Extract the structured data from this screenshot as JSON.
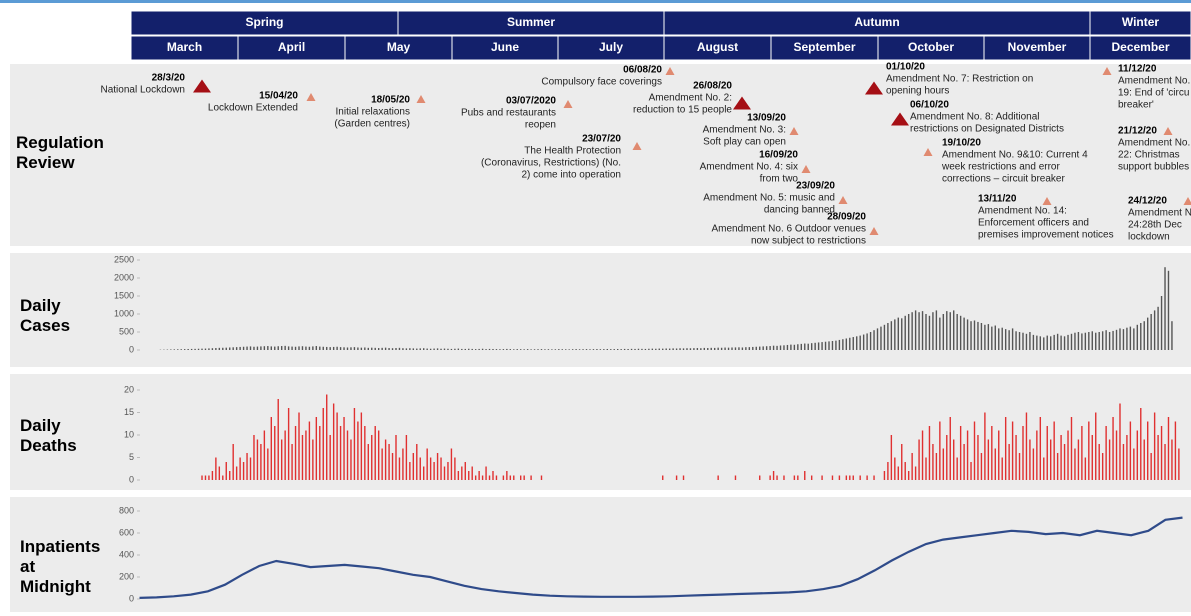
{
  "header": {
    "seasons": [
      "Spring",
      "Summer",
      "Autumn",
      "Winter"
    ],
    "months": [
      "March",
      "April",
      "May",
      "June",
      "July",
      "August",
      "September",
      "October",
      "November",
      "December"
    ]
  },
  "regulation": {
    "title": "Regulation Review",
    "events": [
      {
        "date": "28/3/20",
        "lines": [
          "National Lockdown"
        ],
        "marker": "large",
        "color": "#a50f15"
      },
      {
        "date": "15/04/20",
        "lines": [
          "Lockdown Extended"
        ],
        "marker": "small",
        "color": "#e08a70"
      },
      {
        "date": "18/05/20",
        "lines": [
          "Initial relaxations",
          "(Garden centres)"
        ],
        "marker": "small",
        "color": "#e08a70"
      },
      {
        "date": "06/08/20",
        "lines": [
          "Compulsory face coverings"
        ],
        "marker": "small",
        "color": "#e08a70"
      },
      {
        "date": "03/07/2020",
        "lines": [
          "Pubs and restaurants",
          "reopen"
        ],
        "marker": "small",
        "color": "#e08a70"
      },
      {
        "date": "23/07/20",
        "lines": [
          "The Health Protection",
          "(Coronavirus, Restrictions) (No.",
          "2) come into operation"
        ],
        "marker": "small",
        "color": "#e08a70"
      },
      {
        "date": "26/08/20",
        "lines": [
          "Amendment No. 2:",
          "reduction to 15 people"
        ],
        "marker": "large",
        "color": "#a50f15"
      },
      {
        "date": "13/09/20",
        "lines": [
          "Amendment No. 3:",
          "Soft play can open"
        ],
        "marker": "small",
        "color": "#e08a70"
      },
      {
        "date": "16/09/20",
        "lines": [
          "Amendment No. 4: six",
          "from two"
        ],
        "marker": "small",
        "color": "#e08a70"
      },
      {
        "date": "23/09/20",
        "lines": [
          "Amendment No. 5: music and",
          "dancing banned"
        ],
        "marker": "small",
        "color": "#e08a70"
      },
      {
        "date": "28/09/20",
        "lines": [
          "Amendment No. 6 Outdoor venues",
          "now subject to restrictions"
        ],
        "marker": "small",
        "color": "#e08a70"
      },
      {
        "date": "01/10/20",
        "lines": [
          "Amendment No. 7: Restriction on",
          "opening hours"
        ],
        "marker": "large",
        "color": "#a50f15"
      },
      {
        "date": "06/10/20",
        "lines": [
          "Amendment No. 8: Additional",
          "restrictions on Designated Districts"
        ],
        "marker": "large",
        "color": "#a50f15"
      },
      {
        "date": "19/10/20",
        "lines": [
          "Amendment No. 9&10: Current 4",
          "week restrictions and error",
          "corrections – circuit breaker"
        ],
        "marker": "small",
        "color": "#e08a70"
      },
      {
        "date": "13/11/20",
        "lines": [
          "Amendment No. 14:",
          "Enforcement officers and",
          "premises improvement notices"
        ],
        "marker": "small",
        "color": "#e08a70"
      },
      {
        "date": "11/12/20",
        "lines": [
          "Amendment No.",
          "19: End of 'circu",
          "breaker'"
        ],
        "marker": "small",
        "color": "#e08a70"
      },
      {
        "date": "21/12/20",
        "lines": [
          "Amendment No.",
          "22: Christmas",
          "support bubbles"
        ],
        "marker": "small",
        "color": "#e08a70"
      },
      {
        "date": "24/12/20",
        "lines": [
          "Amendment N",
          "24:28th Dec",
          "lockdown"
        ],
        "marker": "small",
        "color": "#e08a70"
      }
    ]
  },
  "chart_data": [
    {
      "type": "bar",
      "title": "Daily Cases",
      "color": "#555555",
      "ylim": [
        0,
        2500
      ],
      "yticks": [
        0,
        500,
        1000,
        1500,
        2000,
        2500
      ],
      "values": [
        null,
        null,
        null,
        null,
        null,
        null,
        null,
        null,
        8,
        10,
        12,
        15,
        18,
        20,
        22,
        25,
        28,
        30,
        32,
        35,
        38,
        40,
        45,
        50,
        55,
        60,
        62,
        65,
        70,
        75,
        80,
        85,
        90,
        95,
        100,
        90,
        95,
        100,
        105,
        110,
        100,
        95,
        105,
        110,
        115,
        100,
        95,
        90,
        100,
        105,
        95,
        90,
        100,
        110,
        95,
        90,
        85,
        80,
        85,
        90,
        80,
        75,
        70,
        75,
        80,
        70,
        65,
        70,
        60,
        65,
        60,
        55,
        60,
        65,
        55,
        50,
        55,
        60,
        50,
        45,
        50,
        45,
        40,
        45,
        50,
        40,
        35,
        40,
        45,
        35,
        40,
        35,
        30,
        35,
        40,
        30,
        30,
        35,
        30,
        25,
        30,
        35,
        25,
        30,
        28,
        25,
        22,
        25,
        30,
        25,
        20,
        25,
        22,
        20,
        25,
        18,
        20,
        22,
        25,
        20,
        22,
        18,
        20,
        25,
        22,
        20,
        18,
        22,
        25,
        20,
        22,
        25,
        20,
        24,
        26,
        22,
        25,
        28,
        24,
        26,
        28,
        25,
        30,
        28,
        32,
        30,
        35,
        32,
        30,
        35,
        38,
        35,
        40,
        38,
        42,
        40,
        45,
        42,
        48,
        45,
        50,
        48,
        52,
        55,
        50,
        58,
        55,
        60,
        58,
        65,
        62,
        68,
        65,
        70,
        72,
        75,
        70,
        78,
        80,
        85,
        90,
        95,
        100,
        105,
        110,
        120,
        115,
        125,
        130,
        140,
        150,
        145,
        160,
        170,
        180,
        175,
        190,
        200,
        210,
        220,
        230,
        240,
        250,
        260,
        280,
        300,
        320,
        340,
        360,
        380,
        400,
        430,
        460,
        500,
        550,
        600,
        650,
        700,
        750,
        800,
        850,
        900,
        880,
        950,
        1000,
        1050,
        1100,
        1050,
        1080,
        1000,
        950,
        1050,
        1100,
        900,
        1000,
        1080,
        1050,
        1100,
        1000,
        950,
        900,
        850,
        800,
        820,
        780,
        750,
        700,
        720,
        650,
        680,
        600,
        620,
        580,
        550,
        600,
        520,
        500,
        480,
        450,
        500,
        420,
        400,
        380,
        350,
        400,
        380,
        420,
        450,
        400,
        380,
        420,
        450,
        480,
        500,
        460,
        480,
        500,
        520,
        480,
        500,
        520,
        550,
        500,
        530,
        560,
        600,
        580,
        620,
        650,
        600,
        700,
        750,
        800,
        900,
        1000,
        1100,
        1200,
        1500,
        2300,
        2200,
        800,
        null,
        null,
        null,
        null,
        null
      ]
    },
    {
      "type": "bar",
      "title": "Daily Deaths",
      "color": "#e03030",
      "ylim": [
        0,
        20
      ],
      "yticks": [
        0,
        5,
        10,
        15,
        20
      ],
      "values": [
        null,
        null,
        null,
        null,
        null,
        null,
        null,
        null,
        null,
        null,
        null,
        null,
        null,
        null,
        null,
        null,
        null,
        null,
        null,
        null,
        1,
        1,
        1,
        2,
        5,
        3,
        1,
        4,
        2,
        8,
        3,
        5,
        4,
        6,
        5,
        10,
        9,
        8,
        11,
        7,
        14,
        12,
        18,
        9,
        11,
        16,
        8,
        12,
        15,
        10,
        11,
        13,
        9,
        14,
        12,
        16,
        19,
        10,
        17,
        15,
        12,
        14,
        11,
        9,
        16,
        13,
        15,
        12,
        8,
        10,
        12,
        11,
        7,
        9,
        8,
        6,
        10,
        5,
        7,
        10,
        4,
        6,
        8,
        5,
        3,
        7,
        5,
        4,
        6,
        5,
        3,
        4,
        7,
        5,
        2,
        3,
        4,
        2,
        3,
        1,
        2,
        1,
        3,
        1,
        2,
        1,
        0,
        1,
        2,
        1,
        1,
        0,
        1,
        1,
        0,
        1,
        0,
        0,
        1,
        0,
        0,
        0,
        0,
        0,
        0,
        0,
        0,
        0,
        0,
        0,
        0,
        0,
        0,
        0,
        0,
        0,
        0,
        0,
        0,
        0,
        0,
        0,
        0,
        0,
        0,
        0,
        0,
        0,
        0,
        0,
        0,
        0,
        0,
        1,
        0,
        0,
        0,
        1,
        0,
        1,
        0,
        0,
        0,
        0,
        0,
        0,
        0,
        0,
        0,
        1,
        0,
        0,
        0,
        0,
        1,
        0,
        0,
        0,
        0,
        0,
        0,
        1,
        0,
        0,
        1,
        2,
        1,
        0,
        1,
        0,
        0,
        1,
        1,
        0,
        2,
        0,
        1,
        0,
        0,
        1,
        0,
        0,
        1,
        0,
        1,
        0,
        1,
        1,
        1,
        0,
        1,
        0,
        1,
        0,
        1,
        0,
        0,
        2,
        4,
        10,
        5,
        3,
        8,
        4,
        2,
        6,
        3,
        9,
        11,
        5,
        12,
        8,
        6,
        13,
        7,
        10,
        14,
        9,
        5,
        12,
        8,
        11,
        4,
        13,
        10,
        6,
        15,
        9,
        12,
        7,
        11,
        5,
        14,
        8,
        13,
        10,
        6,
        12,
        15,
        9,
        7,
        11,
        14,
        5,
        12,
        9,
        13,
        6,
        10,
        8,
        11,
        14,
        7,
        9,
        12,
        5,
        13,
        10,
        15,
        8,
        6,
        12,
        9,
        14,
        11,
        17,
        8,
        10,
        13,
        7,
        11,
        16,
        9,
        13,
        6,
        15,
        10,
        12,
        8,
        14,
        9,
        13,
        7,
        null,
        null,
        null
      ]
    },
    {
      "type": "line",
      "title": "Inpatients at Midnight",
      "color": "#2f4b8a",
      "ylim": [
        0,
        800
      ],
      "yticks": [
        0,
        200,
        400,
        600,
        800
      ],
      "values": [
        10,
        15,
        25,
        40,
        70,
        130,
        220,
        300,
        345,
        320,
        290,
        300,
        310,
        295,
        280,
        250,
        220,
        200,
        160,
        120,
        90,
        70,
        55,
        40,
        30,
        25,
        22,
        20,
        20,
        20,
        22,
        25,
        30,
        35,
        40,
        45,
        50,
        55,
        60,
        70,
        90,
        120,
        180,
        260,
        350,
        430,
        500,
        540,
        560,
        580,
        600,
        620,
        610,
        590,
        600,
        580,
        620,
        600,
        580,
        620,
        720,
        740
      ]
    }
  ]
}
